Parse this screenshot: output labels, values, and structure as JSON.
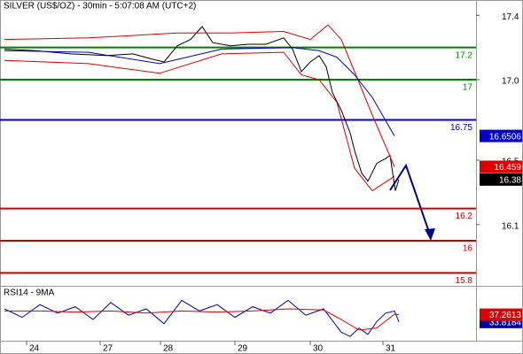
{
  "chart_data": [
    {
      "type": "line",
      "title": "SILVER (US$/OZ) - 30min - 5:07:08 AM (UTC+2)",
      "xlim": [
        0,
        107.4
      ],
      "ylim": [
        15.725,
        17.495
      ],
      "yticks": [
        17.4,
        {
          "value": 17,
          "label": "17.0"
        },
        16.5,
        16.1
      ],
      "series": [
        {
          "name": "Price",
          "color": "#000000",
          "last_box": true,
          "x": [
            1,
            8,
            16,
            24,
            30,
            34,
            37,
            40,
            43,
            45.6,
            48,
            52,
            56,
            60,
            64,
            66,
            68,
            70,
            72,
            73.6,
            75,
            77,
            79,
            80,
            81.6,
            83,
            85,
            87,
            88,
            89.2,
            90
          ],
          "values": [
            17.19,
            17.18,
            17.16,
            17.15,
            17.16,
            17.13,
            17.11,
            17.21,
            17.25,
            17.33,
            17.23,
            17.21,
            17.22,
            17.22,
            17.26,
            17.19,
            17.05,
            17.11,
            17.15,
            17.08,
            16.92,
            16.81,
            16.67,
            16.56,
            16.42,
            16.37,
            16.48,
            16.51,
            16.53,
            16.31,
            16.38
          ]
        },
        {
          "name": "Upper band",
          "color": "#dd0000",
          "last_box": true,
          "x": [
            1,
            20,
            40,
            52,
            64,
            70,
            74,
            77,
            80,
            84,
            89
          ],
          "values": [
            17.25,
            17.26,
            17.29,
            17.29,
            17.3,
            17.25,
            17.34,
            17.25,
            17.05,
            16.78,
            16.459
          ]
        },
        {
          "name": "Middle band",
          "color": "#0000cc",
          "last_box": true,
          "x": [
            1,
            20,
            36,
            50,
            66,
            72,
            76,
            80,
            84,
            89
          ],
          "values": [
            17.18,
            17.17,
            17.1,
            17.19,
            17.2,
            17.18,
            17.14,
            17.03,
            16.89,
            16.6506
          ]
        },
        {
          "name": "Lower band",
          "color": "#dd0000",
          "last_box": false,
          "x": [
            1,
            20,
            36,
            50,
            64,
            68,
            72,
            76,
            80,
            84,
            89
          ],
          "values": [
            17.12,
            17.1,
            17.04,
            17.16,
            17.17,
            17.03,
            17,
            16.86,
            16.45,
            16.31,
            16.4
          ]
        }
      ],
      "levels": [
        {
          "value": 17.2,
          "color": "#008000"
        },
        {
          "value": 17,
          "color": "#008000"
        },
        {
          "value": 16.75,
          "color": "#0000cc"
        },
        {
          "value": 16.2,
          "color": "#cc0000"
        },
        {
          "value": 16,
          "color": "#cc0000"
        },
        {
          "value": 15.8,
          "color": "#cc0000"
        }
      ]
    },
    {
      "type": "line",
      "title": "RSI14 - 9MA",
      "xlim": [
        0,
        107.4
      ],
      "ylim": [
        25,
        50
      ],
      "xticks": [
        {
          "value": 6,
          "label": "24"
        },
        {
          "value": 22.6,
          "label": "27"
        },
        {
          "value": 36.2,
          "label": "28"
        },
        {
          "value": 53,
          "label": "29"
        },
        {
          "value": 70,
          "label": "30"
        },
        {
          "value": 86.4,
          "label": "31"
        }
      ],
      "series": [
        {
          "name": "RSI14",
          "color": "#0000aa",
          "last_box": true,
          "x": [
            1,
            5,
            9,
            13,
            17,
            21,
            25,
            29,
            33,
            37,
            41,
            45,
            49,
            53,
            57,
            61,
            65,
            69,
            73,
            77,
            79,
            81,
            83,
            85,
            87,
            89,
            90
          ],
          "values": [
            40,
            36,
            42,
            38,
            41,
            35,
            43,
            37,
            40,
            33,
            44,
            39,
            42,
            36,
            41,
            38,
            44,
            37,
            40,
            29,
            27,
            31,
            28,
            34,
            38,
            39,
            33.8184
          ]
        },
        {
          "name": "9MA",
          "color": "#dd0000",
          "last_box": true,
          "x": [
            1,
            9,
            17,
            25,
            33,
            41,
            49,
            57,
            65,
            73,
            77,
            81,
            85,
            89,
            90
          ],
          "values": [
            39,
            39,
            38.5,
            39,
            38,
            39,
            38.5,
            39,
            40,
            39.5,
            35,
            30,
            31,
            37.5,
            37.2613
          ]
        }
      ]
    }
  ]
}
